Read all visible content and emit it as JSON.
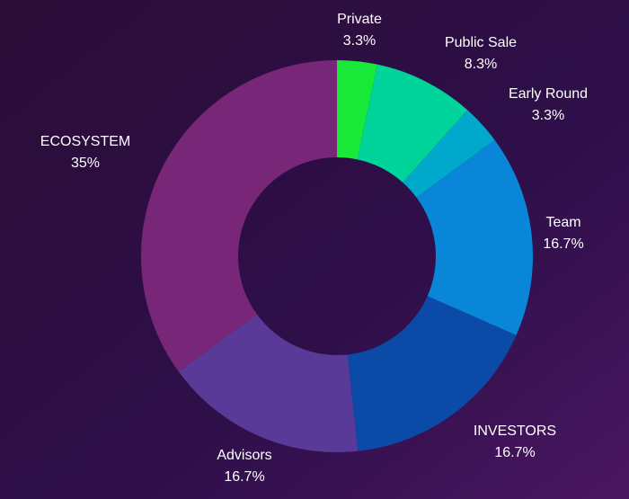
{
  "chart_data": {
    "type": "donut",
    "categories": [
      "Private",
      "Public Sale",
      "Early Round",
      "Team",
      "INVESTORS",
      "Advisors",
      "ECOSYSTEM"
    ],
    "values": [
      3.3,
      8.3,
      3.3,
      16.7,
      16.7,
      16.7,
      35
    ],
    "value_labels": [
      "3.3%",
      "8.3%",
      "3.3%",
      "16.7%",
      "16.7%",
      "16.7%",
      "35%"
    ],
    "colors": [
      "#19ea3a",
      "#00d49a",
      "#00a9cc",
      "#0a86d8",
      "#0b4aa6",
      "#5a3a98",
      "#782678"
    ]
  }
}
